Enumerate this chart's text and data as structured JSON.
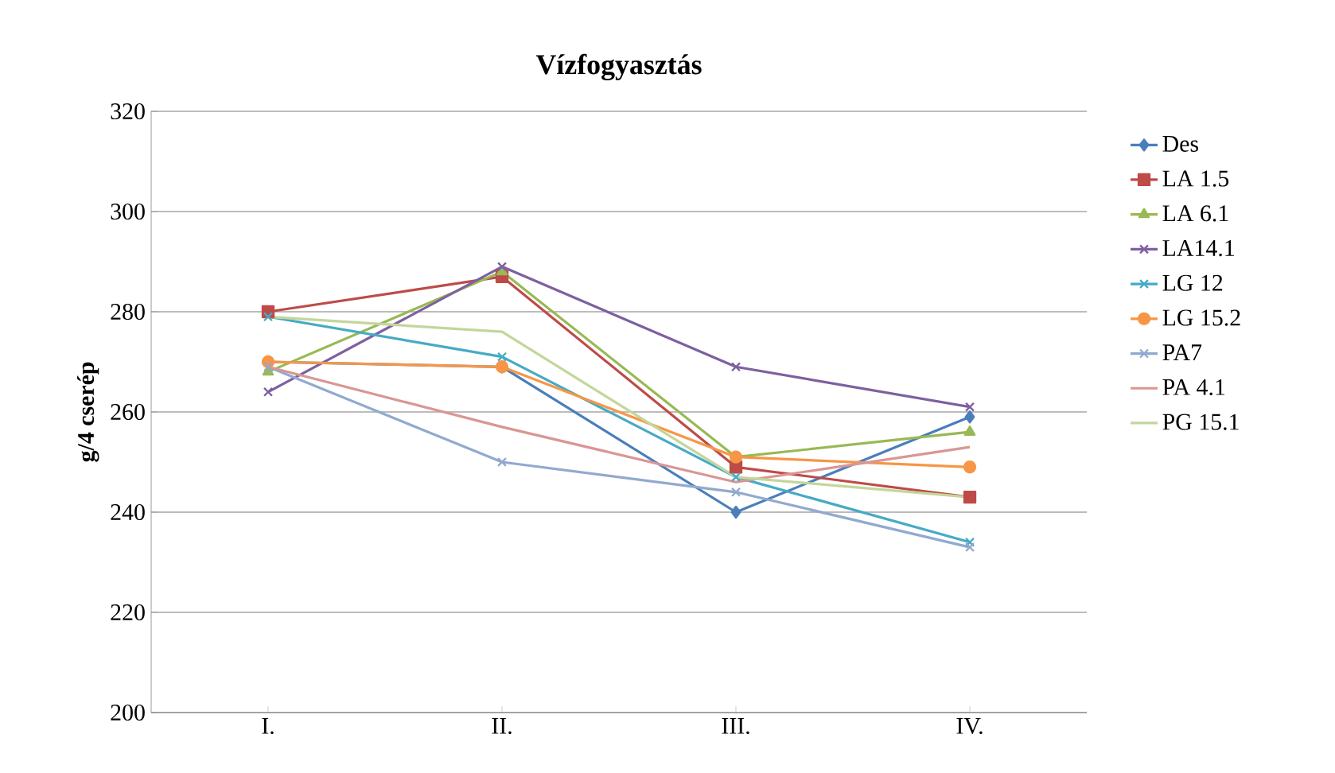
{
  "chart_data": {
    "type": "line",
    "title": "Vízfogyasztás",
    "ylabel": "g/4 cserép",
    "categories": [
      "I.",
      "II.",
      "III.",
      "IV."
    ],
    "ylim": [
      200,
      320
    ],
    "yticks": [
      200,
      220,
      240,
      260,
      280,
      300,
      320
    ],
    "grid": "y",
    "legend": "right",
    "series": [
      {
        "name": "Des",
        "color": "#4a7ebb",
        "marker": "diamond",
        "values": [
          270,
          269,
          240,
          259
        ]
      },
      {
        "name": "LA 1.5",
        "color": "#be4b48",
        "marker": "square",
        "values": [
          280,
          287,
          249,
          243
        ]
      },
      {
        "name": "LA 6.1",
        "color": "#98b954",
        "marker": "triangle",
        "values": [
          268,
          288,
          251,
          256
        ]
      },
      {
        "name": "LA14.1",
        "color": "#7d60a0",
        "marker": "cross",
        "values": [
          264,
          289,
          269,
          261
        ]
      },
      {
        "name": "LG 12",
        "color": "#46aac5",
        "marker": "cross",
        "values": [
          279,
          271,
          247,
          234
        ]
      },
      {
        "name": "LG 15.2",
        "color": "#f79646",
        "marker": "circle",
        "values": [
          270,
          269,
          251,
          249
        ]
      },
      {
        "name": "PA7",
        "color": "#92a9cf",
        "marker": "cross",
        "values": [
          269,
          250,
          244,
          233
        ]
      },
      {
        "name": "PA 4.1",
        "color": "#d99694",
        "marker": "none",
        "values": [
          269,
          257,
          246,
          253
        ]
      },
      {
        "name": "PG 15.1",
        "color": "#c3d69b",
        "marker": "none",
        "values": [
          279,
          276,
          247,
          243
        ]
      }
    ]
  }
}
